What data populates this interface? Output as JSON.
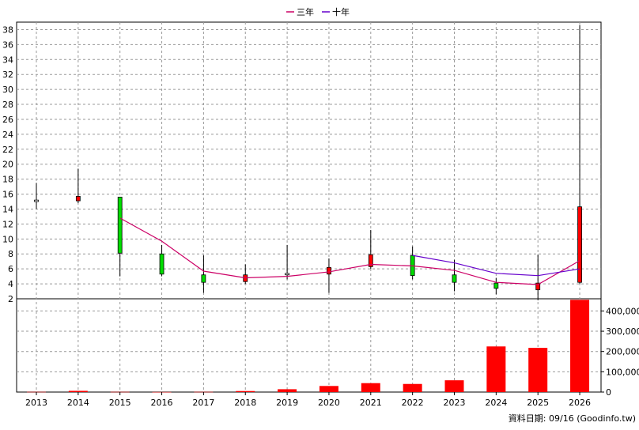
{
  "chart_data": {
    "type": "candlestick",
    "legend": {
      "placement": "top-center",
      "entries": [
        {
          "label": "三年",
          "color": "#cc0066"
        },
        {
          "label": "十年",
          "color": "#6600cc"
        }
      ]
    },
    "categories": [
      "2013",
      "2014",
      "2015",
      "2016",
      "2017",
      "2018",
      "2019",
      "2020",
      "2021",
      "2022",
      "2023",
      "2024",
      "2025",
      "2026"
    ],
    "price_axis": {
      "min": 2,
      "max": 39,
      "ticks": [
        2,
        4,
        6,
        8,
        10,
        12,
        14,
        16,
        18,
        20,
        22,
        24,
        26,
        28,
        30,
        32,
        34,
        36,
        38
      ],
      "position": "left"
    },
    "volume_axis": {
      "min": 0,
      "max": 460000,
      "ticks": [
        0,
        100000,
        200000,
        300000,
        400000
      ],
      "tick_labels": [
        "0",
        "100,000",
        "200,000",
        "300,000",
        "400,000"
      ],
      "position": "right"
    },
    "candles": [
      {
        "year": "2013",
        "open": 15.2,
        "close": 15.0,
        "high": 17.5,
        "low": 14.0,
        "color": "neutral"
      },
      {
        "year": "2014",
        "open": 15.7,
        "close": 15.1,
        "high": 19.4,
        "low": 14.8,
        "color": "red"
      },
      {
        "year": "2015",
        "open": 15.6,
        "close": 8.1,
        "high": 15.6,
        "low": 5.0,
        "color": "green"
      },
      {
        "year": "2016",
        "open": 8.0,
        "close": 5.3,
        "high": 9.2,
        "low": 5.0,
        "color": "green"
      },
      {
        "year": "2017",
        "open": 5.2,
        "close": 4.2,
        "high": 7.8,
        "low": 2.8,
        "color": "green"
      },
      {
        "year": "2018",
        "open": 4.3,
        "close": 5.2,
        "high": 6.6,
        "low": 4.0,
        "color": "red"
      },
      {
        "year": "2019",
        "open": 5.4,
        "close": 5.2,
        "high": 9.2,
        "low": 4.6,
        "color": "neutral"
      },
      {
        "year": "2020",
        "open": 5.3,
        "close": 6.2,
        "high": 7.4,
        "low": 2.8,
        "color": "red"
      },
      {
        "year": "2021",
        "open": 6.3,
        "close": 7.9,
        "high": 11.2,
        "low": 6.0,
        "color": "red"
      },
      {
        "year": "2022",
        "open": 7.8,
        "close": 5.1,
        "high": 9.0,
        "low": 4.6,
        "color": "green"
      },
      {
        "year": "2023",
        "open": 5.2,
        "close": 4.2,
        "high": 7.2,
        "low": 3.0,
        "color": "green"
      },
      {
        "year": "2024",
        "open": 4.1,
        "close": 3.4,
        "high": 4.8,
        "low": 2.6,
        "color": "green"
      },
      {
        "year": "2025",
        "open": 3.2,
        "close": 4.1,
        "high": 7.9,
        "low": 1.8,
        "color": "red"
      },
      {
        "year": "2026",
        "open": 4.2,
        "close": 14.3,
        "high": 38.6,
        "low": 4.0,
        "color": "red"
      }
    ],
    "series": [
      {
        "name": "三年",
        "color": "#cc0066",
        "x": [
          "2015",
          "2016",
          "2017",
          "2018",
          "2019",
          "2020",
          "2021",
          "2022",
          "2023",
          "2024",
          "2025",
          "2026"
        ],
        "values": [
          12.8,
          9.7,
          5.7,
          4.8,
          5.0,
          5.6,
          6.6,
          6.4,
          5.8,
          4.2,
          3.9,
          7.1
        ]
      },
      {
        "name": "十年",
        "color": "#6600cc",
        "x": [
          "2022",
          "2023",
          "2024",
          "2025",
          "2026"
        ],
        "values": [
          7.8,
          6.8,
          5.4,
          5.1,
          6.0
        ]
      }
    ],
    "volume": [
      1000,
      6000,
      1000,
      500,
      1000,
      5000,
      14000,
      30000,
      44000,
      40000,
      58000,
      225000,
      218000,
      455000
    ],
    "grid": true,
    "footer": "資料日期: 09/16  (Goodinfo.tw)"
  }
}
